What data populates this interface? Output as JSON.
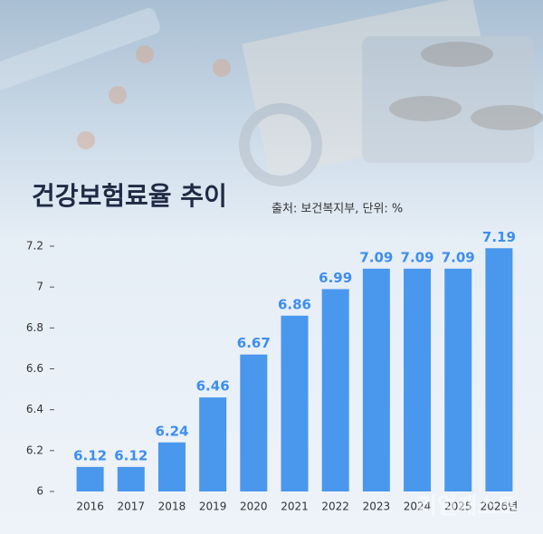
{
  "chart_data": {
    "type": "bar",
    "title": "건강보험료율 추이",
    "subtitle": "출처: 보건복지부, 단위: %",
    "categories": [
      "2016",
      "2017",
      "2018",
      "2019",
      "2020",
      "2021",
      "2022",
      "2023",
      "2024",
      "2025",
      "2026년"
    ],
    "values": [
      6.12,
      6.12,
      6.24,
      6.46,
      6.67,
      6.86,
      6.99,
      7.09,
      7.09,
      7.09,
      7.19
    ],
    "color": "#4a97ee",
    "ylim": [
      6,
      7.2
    ],
    "yticks": [
      6,
      6.2,
      6.4,
      6.6,
      6.8,
      7,
      7.2
    ],
    "grid": false,
    "watermark": "리얼캐스트"
  }
}
